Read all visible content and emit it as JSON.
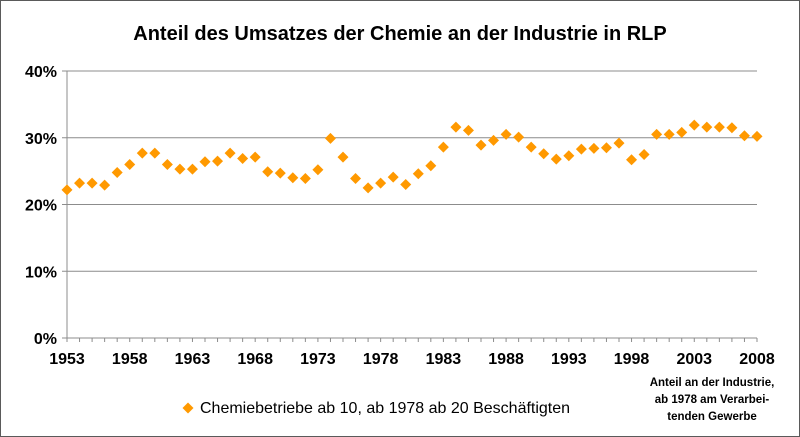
{
  "chart_data": {
    "type": "scatter",
    "title": "Anteil des Umsatzes der Chemie an der Industrie in RLP",
    "xlabel": "",
    "ylabel": "",
    "xlim": [
      1953,
      2008
    ],
    "ylim": [
      0,
      40
    ],
    "x_ticks": [
      "1953",
      "1958",
      "1963",
      "1968",
      "1973",
      "1978",
      "1983",
      "1988",
      "1993",
      "1998",
      "2003",
      "2008"
    ],
    "y_ticks": [
      "0%",
      "10%",
      "20%",
      "30%",
      "40%"
    ],
    "grid": "horizontal",
    "marker": "diamond",
    "color": "#FF9900",
    "legend_position": "bottom",
    "series": [
      {
        "name": "Chemiebetriebe ab 10, ab 1978 ab 20 Beschäftigten",
        "points": [
          [
            1953,
            22.2
          ],
          [
            1954,
            23.2
          ],
          [
            1955,
            23.2
          ],
          [
            1956,
            22.9
          ],
          [
            1957,
            24.8
          ],
          [
            1958,
            26.0
          ],
          [
            1959,
            27.7
          ],
          [
            1960,
            27.7
          ],
          [
            1961,
            26.0
          ],
          [
            1962,
            25.3
          ],
          [
            1963,
            25.3
          ],
          [
            1964,
            26.4
          ],
          [
            1965,
            26.5
          ],
          [
            1966,
            27.7
          ],
          [
            1967,
            26.9
          ],
          [
            1968,
            27.1
          ],
          [
            1969,
            24.9
          ],
          [
            1970,
            24.7
          ],
          [
            1971,
            24.0
          ],
          [
            1972,
            23.9
          ],
          [
            1973,
            25.2
          ],
          [
            1974,
            29.9
          ],
          [
            1975,
            27.1
          ],
          [
            1976,
            23.9
          ],
          [
            1977,
            22.5
          ],
          [
            1978,
            23.2
          ],
          [
            1979,
            24.1
          ],
          [
            1980,
            23.0
          ],
          [
            1981,
            24.6
          ],
          [
            1982,
            25.8
          ],
          [
            1983,
            28.6
          ],
          [
            1984,
            31.6
          ],
          [
            1985,
            31.1
          ],
          [
            1986,
            28.9
          ],
          [
            1987,
            29.6
          ],
          [
            1988,
            30.5
          ],
          [
            1989,
            30.1
          ],
          [
            1990,
            28.6
          ],
          [
            1991,
            27.6
          ],
          [
            1992,
            26.8
          ],
          [
            1993,
            27.3
          ],
          [
            1994,
            28.3
          ],
          [
            1995,
            28.4
          ],
          [
            1996,
            28.5
          ],
          [
            1997,
            29.2
          ],
          [
            1998,
            26.7
          ],
          [
            1999,
            27.5
          ],
          [
            2000,
            30.5
          ],
          [
            2001,
            30.5
          ],
          [
            2002,
            30.8
          ],
          [
            2003,
            31.9
          ],
          [
            2004,
            31.6
          ],
          [
            2005,
            31.6
          ],
          [
            2006,
            31.5
          ],
          [
            2007,
            30.3
          ],
          [
            2008,
            30.2
          ]
        ]
      }
    ],
    "annotation": [
      "Anteil an der Industrie,",
      "ab 1978 am Verarbei-",
      "tenden Gewerbe"
    ]
  }
}
